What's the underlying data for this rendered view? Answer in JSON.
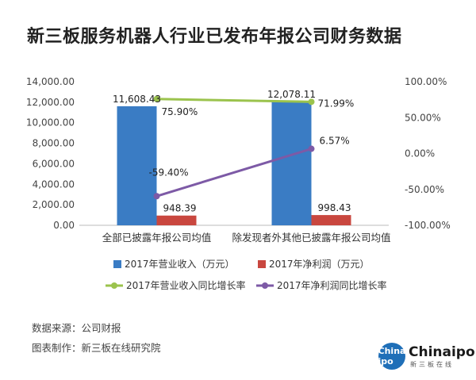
{
  "title": "新三板服务机器人行业已发布年报公司财务数据",
  "chart_data": {
    "type": "bar",
    "categories": [
      "全部已披露年报公司均值",
      "除发现者外其他已披露年报公司均值"
    ],
    "y_left": {
      "min": 0,
      "max": 14000,
      "ticks": [
        "0.00",
        "2,000.00",
        "4,000.00",
        "6,000.00",
        "8,000.00",
        "10,000.00",
        "12,000.00",
        "14,000.00"
      ]
    },
    "y_right": {
      "min": -100,
      "max": 100,
      "ticks": [
        "-100.00%",
        "-50.00%",
        "0.00%",
        "50.00%",
        "100.00%"
      ]
    },
    "bar_series": [
      {
        "name": "2017年营业收入（万元）",
        "color": "#3a7cc4",
        "values": [
          11608.43,
          12078.11
        ],
        "labels": [
          "11,608.43",
          "12,078.11"
        ]
      },
      {
        "name": "2017年净利润（万元）",
        "color": "#c9473f",
        "values": [
          948.39,
          998.43
        ],
        "labels": [
          "948.39",
          "998.43"
        ]
      }
    ],
    "line_series": [
      {
        "name": "2017年营业收入同比增长率",
        "color": "#9bc34d",
        "values": [
          75.9,
          71.99
        ],
        "labels": [
          "75.90%",
          "71.99%"
        ]
      },
      {
        "name": "2017年净利润同比增长率",
        "color": "#7d5aa6",
        "values": [
          -59.4,
          6.57
        ],
        "labels": [
          "-59.40%",
          "6.57%"
        ]
      }
    ],
    "legend_position": "bottom"
  },
  "footer": {
    "source": "数据来源：公司财报",
    "maker": "图表制作：新三板在线研究院"
  },
  "logo": {
    "circle_text": "China ipo",
    "word": "Chinaipo",
    "sub": "新三板在线"
  }
}
